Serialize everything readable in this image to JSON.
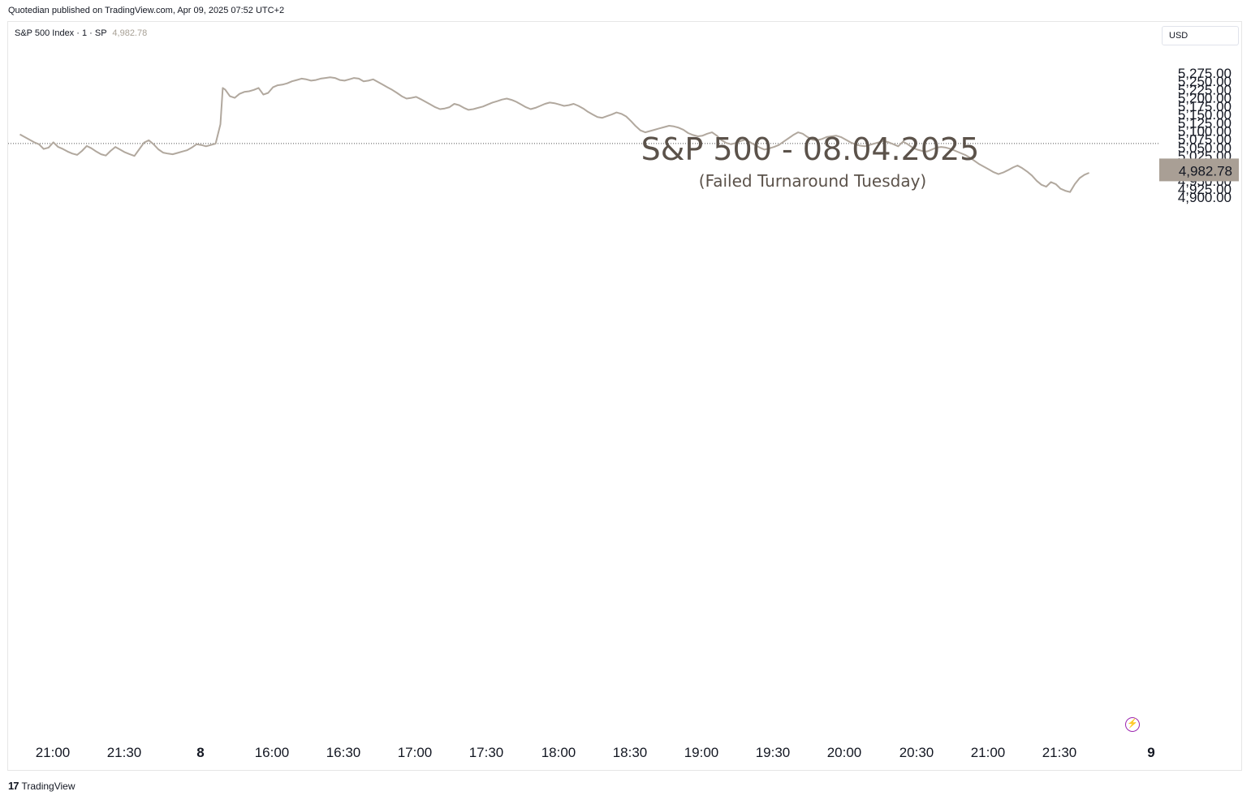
{
  "header": {
    "publisher_line": "Quotedian published on TradingView.com, Apr 09, 2025 07:52 UTC+2"
  },
  "legend": {
    "symbol": "S&P 500 Index · 1 · SP",
    "last_price": "4,982.78"
  },
  "currency_button": "USD",
  "footer": {
    "logo_glyph": "17",
    "brand": "TradingView"
  },
  "icons": {
    "bolt": "lightning-icon",
    "logo": "tradingview-logo-icon"
  },
  "colors": {
    "line": "#b1a89e",
    "price_tag": "#a99f95",
    "title": "#5b524a",
    "ref_line": "#555555"
  },
  "chart_data": {
    "type": "line",
    "title": "S&P 500 - 08.04.2025",
    "subtitle": "(Failed Turnaround Tuesday)",
    "ylim": [
      4886.2,
      5301.5
    ],
    "y_ticks": [
      "5,275.00",
      "5,250.00",
      "5,225.00",
      "5,200.00",
      "5,175.00",
      "5,150.00",
      "5,125.00",
      "5,100.00",
      "5,075.00",
      "5,050.00",
      "5,025.00",
      "5,000.00",
      "4,975.00",
      "4,950.00",
      "4,925.00",
      "4,900.00"
    ],
    "x_ticks": [
      "21:00",
      "21:30",
      "8",
      "16:00",
      "16:30",
      "17:00",
      "17:30",
      "18:00",
      "18:30",
      "19:00",
      "19:30",
      "20:00",
      "20:30",
      "21:00",
      "21:30",
      "9"
    ],
    "last_value": 4982.78,
    "last_label": "4,982.78",
    "reference_value": 5062.25,
    "grid": false,
    "series": [
      {
        "time_min": [
          -22,
          -20,
          -18,
          -16,
          -14,
          -12,
          -10,
          -8,
          -6,
          -4,
          -2,
          0,
          2,
          4,
          6,
          8,
          10,
          12,
          14,
          16,
          18,
          20,
          22,
          24,
          26,
          28,
          30,
          32,
          34,
          36,
          38,
          40,
          42,
          44,
          46,
          48,
          50,
          52,
          54,
          56,
          58,
          60,
          62,
          63,
          64,
          66,
          68,
          70,
          72,
          74,
          76,
          78,
          80,
          82,
          84,
          86,
          88,
          90,
          92,
          94,
          96,
          98,
          100,
          102,
          104,
          106,
          108,
          110,
          112,
          114,
          116,
          118,
          120,
          122,
          124,
          126,
          128,
          130,
          132,
          134,
          136,
          138,
          140,
          142,
          144,
          146,
          148,
          150,
          152,
          154,
          156,
          158,
          160,
          162,
          164,
          166,
          168,
          170,
          172,
          174,
          176,
          178,
          180,
          182,
          184,
          186,
          188,
          190,
          192,
          194,
          196,
          198,
          200,
          202,
          204,
          206,
          208,
          210,
          212,
          214,
          216,
          218,
          220,
          222,
          224,
          226,
          228,
          230,
          232,
          234,
          236,
          238,
          240,
          242,
          244,
          246,
          248,
          250,
          252,
          254,
          256,
          258,
          260,
          262,
          264,
          266,
          268,
          270,
          272,
          274,
          276,
          278,
          280,
          282,
          284,
          286,
          288,
          290,
          292,
          294,
          296,
          298,
          300,
          302,
          304,
          306,
          308,
          310,
          312,
          314,
          316,
          318,
          320,
          322,
          324,
          326,
          328,
          330,
          332,
          334,
          336,
          338,
          340,
          342,
          344,
          346,
          348,
          350,
          352,
          354,
          356,
          358,
          360,
          362,
          364,
          366,
          368,
          370,
          372,
          374,
          376,
          378,
          380,
          382,
          384,
          386,
          388,
          390,
          392,
          394,
          396,
          398,
          400,
          402,
          404,
          406,
          408,
          410,
          412,
          414,
          416,
          418,
          420,
          422,
          424,
          426
        ],
        "values": [
          5090,
          5082,
          5074,
          5066,
          5060,
          5046,
          5050,
          5066,
          5052,
          5046,
          5038,
          5032,
          5028,
          5040,
          5055,
          5048,
          5038,
          5030,
          5026,
          5040,
          5052,
          5044,
          5036,
          5030,
          5025,
          5045,
          5065,
          5072,
          5060,
          5045,
          5035,
          5032,
          5030,
          5034,
          5038,
          5042,
          5050,
          5060,
          5058,
          5054,
          5058,
          5062,
          5120,
          5230,
          5225,
          5205,
          5200,
          5212,
          5218,
          5220,
          5224,
          5230,
          5210,
          5215,
          5232,
          5238,
          5240,
          5244,
          5250,
          5254,
          5258,
          5256,
          5252,
          5254,
          5258,
          5260,
          5262,
          5260,
          5254,
          5252,
          5256,
          5260,
          5258,
          5250,
          5252,
          5256,
          5248,
          5240,
          5232,
          5224,
          5215,
          5205,
          5198,
          5200,
          5203,
          5196,
          5188,
          5180,
          5172,
          5166,
          5168,
          5172,
          5182,
          5178,
          5170,
          5164,
          5166,
          5170,
          5174,
          5180,
          5186,
          5190,
          5195,
          5198,
          5194,
          5188,
          5180,
          5172,
          5166,
          5170,
          5176,
          5182,
          5186,
          5184,
          5180,
          5176,
          5178,
          5182,
          5176,
          5168,
          5158,
          5150,
          5142,
          5140,
          5145,
          5150,
          5156,
          5152,
          5144,
          5130,
          5115,
          5102,
          5096,
          5100,
          5104,
          5108,
          5112,
          5116,
          5114,
          5110,
          5104,
          5094,
          5088,
          5084,
          5086,
          5092,
          5096,
          5086,
          5072,
          5064,
          5060,
          5064,
          5070,
          5074,
          5066,
          5058,
          5050,
          5044,
          5048,
          5052,
          5058,
          5068,
          5078,
          5088,
          5096,
          5092,
          5082,
          5074,
          5072,
          5076,
          5082,
          5084,
          5086,
          5082,
          5074,
          5066,
          5060,
          5056,
          5054,
          5058,
          5062,
          5066,
          5070,
          5066,
          5060,
          5054,
          5068,
          5060,
          5050,
          5044,
          5040,
          5038,
          5044,
          5050,
          5052,
          5050,
          5046,
          5040,
          5034,
          5028,
          5020,
          5010,
          5000,
          4992,
          4984,
          4976,
          4970,
          4975,
          4982,
          4990,
          4996,
          4988,
          4978,
          4966,
          4950,
          4938,
          4932,
          4946,
          4940,
          4926,
          4920,
          4916,
          4940,
          4958,
          4968,
          4974,
          4978,
          4984,
          4982
        ]
      }
    ]
  }
}
